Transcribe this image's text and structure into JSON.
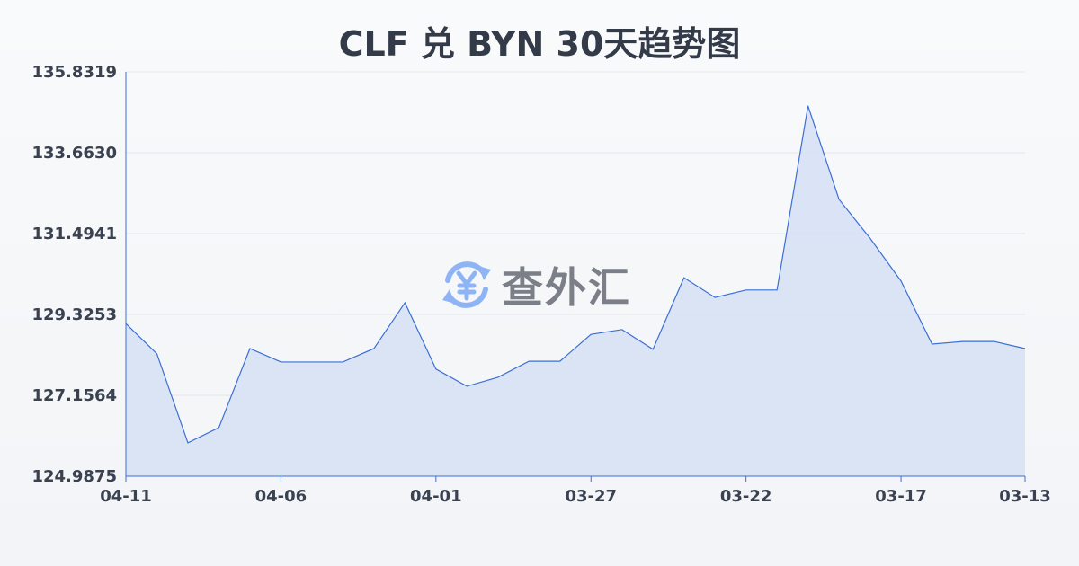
{
  "chart_data": {
    "type": "area",
    "title": "CLF 兑 BYN 30天趋势图",
    "xlabel": "",
    "ylabel": "",
    "x": [
      "04-11",
      "04-10",
      "04-09",
      "04-08",
      "04-07",
      "04-06",
      "04-05",
      "04-04",
      "04-03",
      "04-02",
      "04-01",
      "03-31",
      "03-30",
      "03-29",
      "03-28",
      "03-27",
      "03-26",
      "03-25",
      "03-24",
      "03-23",
      "03-22",
      "03-21",
      "03-20",
      "03-19",
      "03-18",
      "03-17",
      "03-16",
      "03-15",
      "03-14",
      "03-13"
    ],
    "values": [
      129.08,
      128.27,
      125.88,
      126.29,
      128.41,
      128.05,
      128.05,
      128.05,
      128.41,
      129.64,
      127.86,
      127.4,
      127.64,
      128.07,
      128.07,
      128.79,
      128.92,
      128.39,
      130.31,
      129.78,
      129.98,
      129.98,
      134.92,
      132.41,
      131.37,
      130.22,
      128.53,
      128.6,
      128.6,
      128.41
    ],
    "x_tick_labels": [
      "04-11",
      "04-06",
      "04-01",
      "03-27",
      "03-22",
      "03-17",
      "03-13"
    ],
    "y_tick_labels": [
      "135.8319",
      "133.6630",
      "131.4941",
      "129.3253",
      "127.1564",
      "124.9875"
    ],
    "ylim": [
      124.9875,
      135.8319
    ],
    "grid": true,
    "line_color": "#3b6fd4",
    "fill_color": "#d6e0f5"
  },
  "watermark": {
    "text": "查外汇",
    "icon": "yen-exchange-icon",
    "icon_color": "#8fb4f5"
  }
}
